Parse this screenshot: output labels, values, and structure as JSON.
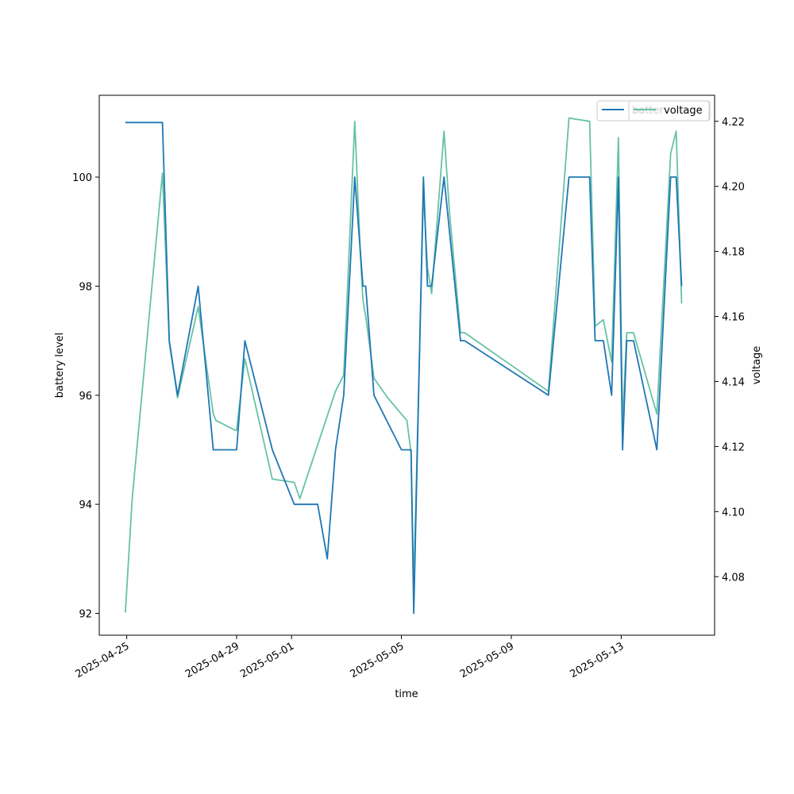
{
  "chart_data": {
    "type": "line",
    "xlabel": "time",
    "ylabel_left": "battery level",
    "ylabel_right": "voltage",
    "x_tick_labels": [
      "2025-04-25",
      "2025-04-29",
      "2025-05-01",
      "2025-05-05",
      "2025-05-09",
      "2025-05-13"
    ],
    "x_tick_days": [
      0,
      4,
      6,
      10,
      14,
      18
    ],
    "xlim_days": [
      -1.0,
      21.4
    ],
    "left_axis": {
      "ylim": [
        91.6,
        101.5
      ],
      "ticks": [
        92,
        94,
        96,
        98,
        100
      ]
    },
    "right_axis": {
      "ylim": [
        4.062,
        4.228
      ],
      "ticks": [
        "4.08",
        "4.10",
        "4.12",
        "4.14",
        "4.16",
        "4.18",
        "4.20",
        "4.22"
      ]
    },
    "legend": {
      "placement": "top-right",
      "overlapping": true
    },
    "series": [
      {
        "name": "battery level",
        "label_shown": "batter",
        "axis": "left",
        "color": "#1f77b4",
        "x_days": [
          -0.05,
          1.3,
          1.55,
          1.85,
          2.6,
          3.15,
          3.95,
          4.0,
          4.3,
          5.3,
          6.1,
          6.3,
          6.95,
          7.3,
          7.6,
          7.9,
          8.3,
          8.6,
          8.7,
          9.0,
          10.0,
          10.35,
          10.45,
          10.8,
          10.95,
          11.1,
          11.55,
          11.75,
          12.15,
          12.3,
          15.35,
          16.1,
          16.85,
          17.05,
          17.35,
          17.65,
          17.9,
          18.05,
          18.2,
          18.3,
          18.45,
          19.3,
          19.8,
          20.0,
          20.2
        ],
        "values": [
          101,
          101,
          97,
          96,
          98,
          95,
          95,
          95,
          97,
          95,
          94,
          94,
          94,
          93,
          95,
          96,
          100,
          98,
          98,
          96,
          95,
          95,
          92,
          100,
          98,
          98,
          100,
          99,
          97,
          97,
          96,
          100,
          100,
          97,
          97,
          96,
          100,
          95,
          97,
          97,
          97,
          95,
          100,
          100,
          98
        ]
      },
      {
        "name": "voltage",
        "label_shown": "voltage",
        "axis": "right",
        "color": "#66c2a5",
        "x_days": [
          -0.05,
          0.2,
          1.3,
          1.55,
          1.85,
          2.6,
          3.15,
          3.25,
          3.95,
          4.0,
          4.3,
          5.3,
          6.1,
          6.3,
          7.6,
          7.9,
          8.3,
          8.5,
          8.6,
          8.7,
          9.0,
          9.5,
          10.2,
          10.35,
          10.45,
          10.8,
          10.95,
          11.1,
          11.55,
          11.75,
          12.15,
          12.3,
          15.35,
          16.1,
          16.85,
          17.05,
          17.35,
          17.65,
          17.9,
          18.05,
          18.2,
          18.3,
          18.45,
          19.3,
          19.8,
          20.0,
          20.2
        ],
        "values": [
          4.069,
          4.104,
          4.204,
          4.152,
          4.135,
          4.163,
          4.13,
          4.128,
          4.125,
          4.125,
          4.147,
          4.11,
          4.109,
          4.104,
          4.137,
          4.142,
          4.22,
          4.18,
          4.165,
          4.16,
          4.141,
          4.135,
          4.128,
          4.118,
          4.077,
          4.198,
          4.175,
          4.167,
          4.217,
          4.192,
          4.155,
          4.155,
          4.137,
          4.221,
          4.22,
          4.157,
          4.159,
          4.146,
          4.215,
          4.127,
          4.155,
          4.155,
          4.155,
          4.13,
          4.21,
          4.217,
          4.164
        ]
      }
    ]
  }
}
